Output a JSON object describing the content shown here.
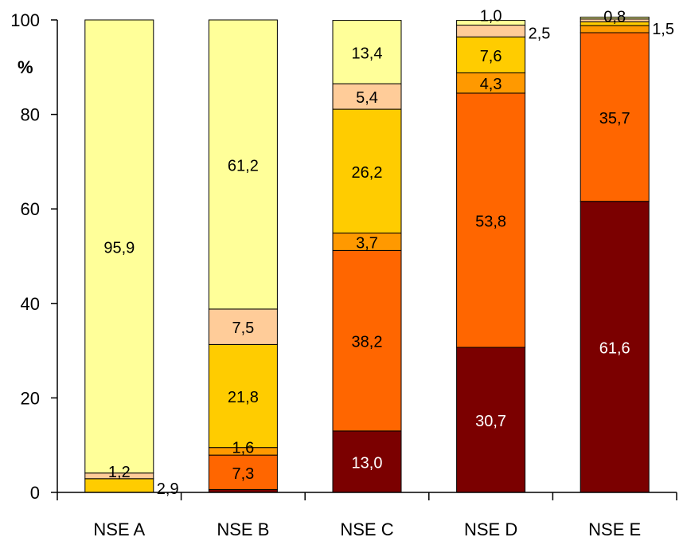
{
  "chart_data": {
    "type": "bar",
    "stacked": true,
    "categories": [
      "NSE A",
      "NSE B",
      "NSE C",
      "NSE D",
      "NSE E"
    ],
    "ylabel": "%",
    "ylim": [
      0,
      100
    ],
    "yticks": [
      "0",
      "20",
      "40",
      "60",
      "80",
      "100"
    ],
    "grid": false,
    "series": [
      {
        "color": "#7b0000",
        "values": [
          0.0,
          0.6,
          13.0,
          30.7,
          61.6
        ],
        "labels": [
          "",
          "",
          "13,0",
          "30,7",
          "61,6"
        ],
        "label_colors": [
          "#ffffff",
          "#ffffff",
          "#ffffff",
          "#ffffff",
          "#ffffff"
        ]
      },
      {
        "color": "#ff6600",
        "values": [
          0.0,
          7.3,
          38.2,
          53.8,
          35.7
        ],
        "labels": [
          "",
          "7,3",
          "38,2",
          "53,8",
          "35,7"
        ],
        "label_colors": [
          "#000000",
          "#000000",
          "#000000",
          "#000000",
          "#000000"
        ]
      },
      {
        "color": "#ff9900",
        "values": [
          0.0,
          1.6,
          3.7,
          4.3,
          1.5
        ],
        "labels": [
          "",
          "1,6",
          "3,7",
          "4,3",
          "1,5"
        ],
        "label_colors": [
          "#000000",
          "#000000",
          "#000000",
          "#000000",
          "#000000"
        ]
      },
      {
        "color": "#ffcc00",
        "values": [
          2.9,
          21.8,
          26.2,
          7.6,
          0.8
        ],
        "labels": [
          "2,9",
          "21,8",
          "26,2",
          "7,6",
          "0,8"
        ],
        "label_colors": [
          "#000000",
          "#000000",
          "#000000",
          "#000000",
          "#000000"
        ]
      },
      {
        "color": "#ffcc99",
        "values": [
          1.2,
          7.5,
          5.4,
          2.5,
          0.6
        ],
        "labels": [
          "1,2",
          "7,5",
          "5,4",
          "2,5",
          ""
        ],
        "label_colors": [
          "#000000",
          "#000000",
          "#000000",
          "#000000",
          "#000000"
        ]
      },
      {
        "color": "#ffff99",
        "values": [
          95.9,
          61.2,
          13.4,
          1.0,
          0.4
        ],
        "labels": [
          "95,9",
          "61,2",
          "13,4",
          "1,0",
          ""
        ],
        "label_colors": [
          "#000000",
          "#000000",
          "#000000",
          "#000000",
          "#000000"
        ]
      }
    ]
  }
}
